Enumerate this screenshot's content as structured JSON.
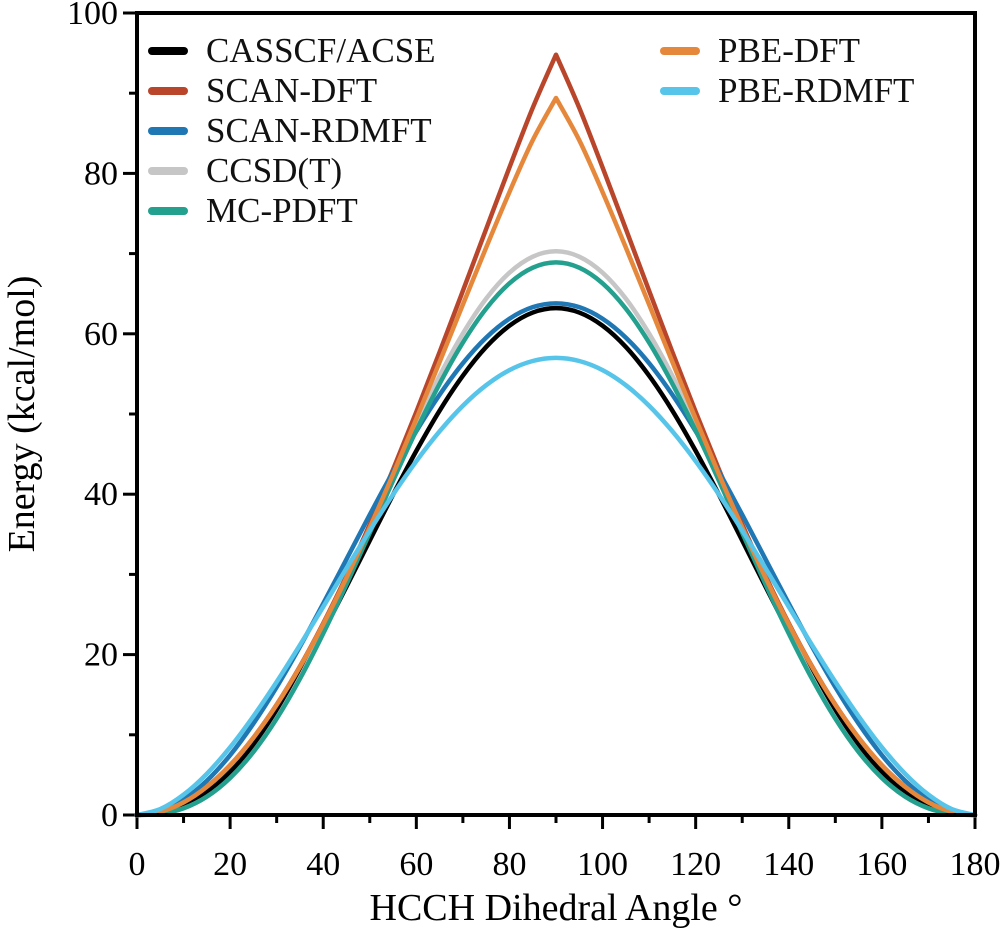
{
  "chart_data": {
    "type": "line",
    "title": "",
    "xlabel": "HCCH Dihedral Angle °",
    "ylabel": "Energy (kcal/mol)",
    "xlim": [
      0,
      180
    ],
    "ylim": [
      0,
      100
    ],
    "x_major_ticks": [
      0,
      20,
      40,
      60,
      80,
      100,
      120,
      140,
      160,
      180
    ],
    "y_major_ticks": [
      0,
      20,
      40,
      60,
      80,
      100
    ],
    "x_minor_step": 10,
    "y_minor_step": 10,
    "grid": "off",
    "frame": "box",
    "legend_position": "upper-left, two columns inside axes",
    "x": [
      0,
      5,
      10,
      15,
      20,
      25,
      30,
      35,
      40,
      45,
      50,
      55,
      60,
      65,
      70,
      75,
      80,
      85,
      90,
      95,
      100,
      105,
      110,
      115,
      120,
      125,
      130,
      135,
      140,
      145,
      150,
      155,
      160,
      165,
      170,
      175,
      180
    ],
    "series": [
      {
        "name": "CASSCF/ACSE",
        "color": "#000000",
        "peak": 63.2,
        "peak_style": "smooth",
        "values": [
          0,
          0.23,
          1.13,
          2.82,
          5.36,
          8.72,
          12.84,
          17.59,
          22.87,
          28.48,
          34.23,
          39.94,
          45.4,
          50.42,
          54.78,
          58.36,
          61.01,
          62.65,
          63.2,
          62.65,
          61.01,
          58.36,
          54.78,
          50.42,
          45.4,
          39.94,
          34.23,
          28.48,
          22.87,
          17.59,
          12.84,
          8.72,
          5.36,
          2.82,
          1.13,
          0.23,
          0
        ]
      },
      {
        "name": "SCAN-DFT",
        "color": "#b9462b",
        "peak": 94.8,
        "peak_style": "cusp",
        "values": [
          0,
          0.39,
          1.57,
          3.52,
          6.21,
          9.64,
          13.76,
          18.53,
          23.9,
          29.82,
          36.23,
          43.08,
          50.27,
          57.73,
          65.36,
          73.07,
          80.74,
          88.17,
          94.8,
          88.17,
          80.74,
          73.07,
          65.36,
          57.73,
          50.27,
          43.08,
          36.23,
          29.82,
          23.9,
          18.53,
          13.76,
          9.64,
          6.21,
          3.52,
          1.57,
          0.39,
          0
        ]
      },
      {
        "name": "SCAN-RDMFT",
        "color": "#1f77b4",
        "peak": 63.8,
        "peak_style": "smooth",
        "values": [
          0,
          0.48,
          1.92,
          4.27,
          7.46,
          11.4,
          15.95,
          20.99,
          26.36,
          31.9,
          37.44,
          42.81,
          47.85,
          52.4,
          56.34,
          59.53,
          61.88,
          63.32,
          63.8,
          63.32,
          61.88,
          59.53,
          56.34,
          52.4,
          47.85,
          42.81,
          37.44,
          31.9,
          26.36,
          20.99,
          15.95,
          11.4,
          7.46,
          4.27,
          1.92,
          0.48,
          0
        ]
      },
      {
        "name": "CCSD(T)",
        "color": "#c6c6c6",
        "peak": 70.3,
        "peak_style": "smooth",
        "values": [
          0,
          0.14,
          0.82,
          2.27,
          4.61,
          7.89,
          12.08,
          17.13,
          22.88,
          29.15,
          35.73,
          42.36,
          48.78,
          54.76,
          60.03,
          64.38,
          67.62,
          69.62,
          70.3,
          69.62,
          67.62,
          64.38,
          60.03,
          54.76,
          48.78,
          42.36,
          35.73,
          29.15,
          22.88,
          17.13,
          12.08,
          7.89,
          4.61,
          2.27,
          0.82,
          0.14,
          0
        ]
      },
      {
        "name": "MC-PDFT",
        "color": "#24a08e",
        "peak": 68.9,
        "peak_style": "smooth",
        "values": [
          0,
          0.15,
          0.84,
          2.29,
          4.62,
          7.86,
          12.01,
          16.98,
          22.63,
          28.77,
          35.19,
          41.68,
          47.95,
          53.77,
          58.91,
          63.14,
          66.29,
          68.24,
          68.9,
          68.24,
          66.29,
          63.14,
          58.91,
          53.77,
          47.95,
          41.68,
          35.19,
          28.77,
          22.63,
          16.98,
          12.01,
          7.86,
          4.62,
          2.29,
          0.84,
          0.15,
          0
        ]
      },
      {
        "name": "PBE-DFT",
        "color": "#e6883c",
        "peak": 89.4,
        "peak_style": "cusp",
        "values": [
          0,
          0.4,
          1.57,
          3.52,
          6.22,
          9.64,
          13.74,
          18.47,
          23.78,
          29.59,
          35.85,
          42.49,
          49.39,
          56.48,
          63.65,
          70.76,
          77.67,
          84.13,
          89.4,
          84.13,
          77.67,
          70.76,
          63.65,
          56.48,
          49.39,
          42.49,
          35.85,
          29.59,
          23.78,
          18.47,
          13.74,
          9.64,
          6.22,
          3.52,
          1.57,
          0.4,
          0
        ]
      },
      {
        "name": "PBE-RDMFT",
        "color": "#57c4e9",
        "peak": 57.0,
        "peak_style": "smooth",
        "values": [
          0,
          0.74,
          2.53,
          5.14,
          8.44,
          12.31,
          16.6,
          21.19,
          25.96,
          30.76,
          35.47,
          39.96,
          44.12,
          47.84,
          51.03,
          53.59,
          55.47,
          56.61,
          57,
          56.61,
          55.47,
          53.59,
          51.03,
          47.84,
          44.12,
          39.96,
          35.47,
          30.76,
          25.96,
          21.19,
          16.6,
          12.31,
          8.44,
          5.14,
          2.53,
          0.74,
          0
        ]
      }
    ]
  },
  "legend": {
    "column1_series_indexes": [
      0,
      1,
      2,
      3,
      4
    ],
    "column2_series_indexes": [
      5,
      6
    ]
  },
  "style": {
    "axis_color": "#000000",
    "background": "#ffffff",
    "line_width": 4.5
  }
}
